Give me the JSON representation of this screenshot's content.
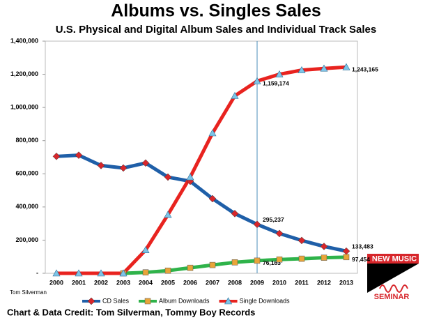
{
  "chart_data": {
    "type": "line",
    "title": "Albums vs. Singles Sales",
    "subtitle": "U.S. Physical and Digital Album Sales and Individual Track Sales",
    "categories": [
      "2000",
      "2001",
      "2002",
      "2003",
      "2004",
      "2005",
      "2006",
      "2007",
      "2008",
      "2009",
      "2010",
      "2011",
      "2012",
      "2013"
    ],
    "series": [
      {
        "name": "CD Sales",
        "color": "#1f5fa8",
        "marker": "diamond",
        "marker_color": "#d7262b",
        "values": [
          705000,
          712000,
          650000,
          635000,
          665000,
          580000,
          555000,
          450000,
          360000,
          295237,
          240000,
          198000,
          162000,
          133483
        ],
        "value_labels": [
          null,
          null,
          null,
          null,
          null,
          null,
          null,
          null,
          null,
          "295,237",
          null,
          null,
          null,
          "133,483"
        ]
      },
      {
        "name": "Album Downloads",
        "color": "#2fb34a",
        "marker": "square",
        "marker_color": "#e8a53a",
        "values": [
          null,
          null,
          null,
          0,
          5500,
          16000,
          33000,
          50000,
          66000,
          76163,
          83000,
          88000,
          94000,
          97454
        ],
        "value_labels": [
          null,
          null,
          null,
          null,
          null,
          null,
          null,
          null,
          null,
          "76,163",
          null,
          null,
          null,
          "97,454"
        ]
      },
      {
        "name": "Single Downloads",
        "color": "#e8231f",
        "marker": "triangle",
        "marker_color": "#7ec4e6",
        "values": [
          0,
          0,
          0,
          0,
          140000,
          353000,
          580000,
          845000,
          1070000,
          1159174,
          1200000,
          1225000,
          1235000,
          1243165
        ],
        "value_labels": [
          null,
          null,
          null,
          null,
          null,
          null,
          null,
          null,
          null,
          "1,159,174",
          null,
          null,
          null,
          "1,243,165"
        ]
      }
    ],
    "ylim": [
      0,
      1400000
    ],
    "yticks": [
      {
        "value": 0,
        "label": "-"
      },
      {
        "value": 200000,
        "label": "200,000"
      },
      {
        "value": 400000,
        "label": "400,000"
      },
      {
        "value": 600000,
        "label": "600,000"
      },
      {
        "value": 800000,
        "label": "800,000"
      },
      {
        "value": 1000000,
        "label": "1,000,000"
      },
      {
        "value": 1200000,
        "label": "1,200,000"
      },
      {
        "value": 1400000,
        "label": "1,400,000"
      }
    ],
    "reference_line": "2009",
    "author": "Tom Silverman",
    "credit": "Chart & Data Credit: Tom Silverman, Tommy Boy Records",
    "logo": {
      "line1": "NEW MUSIC",
      "line2": "SEMINAR"
    }
  }
}
